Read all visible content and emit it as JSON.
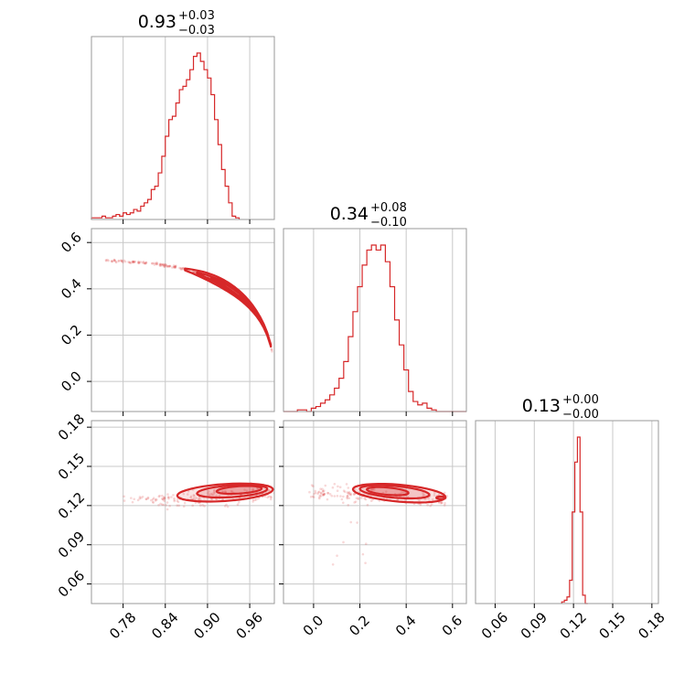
{
  "colors": {
    "accent": "#d62728",
    "grid": "#c8c8c8",
    "frame": "#9a9a9a"
  },
  "chart_data": {
    "type": "corner",
    "grid": true,
    "parameters": [
      {
        "index": 0,
        "range": [
          0.735,
          0.995
        ],
        "ticks": [
          0.78,
          0.84,
          0.9,
          0.96
        ],
        "tick_labels": [
          "0.78",
          "0.84",
          "0.90",
          "0.96"
        ],
        "title": {
          "median": "0.93",
          "plus": "+0.03",
          "minus": "−0.03"
        },
        "histogram": {
          "bin_start": 0.735,
          "bin_width": 0.005,
          "counts": [
            0.01,
            0.01,
            0.01,
            0.02,
            0.01,
            0.01,
            0.02,
            0.03,
            0.02,
            0.04,
            0.03,
            0.04,
            0.06,
            0.05,
            0.08,
            0.1,
            0.12,
            0.18,
            0.2,
            0.28,
            0.38,
            0.5,
            0.6,
            0.62,
            0.7,
            0.78,
            0.8,
            0.84,
            0.9,
            0.98,
            1.0,
            0.95,
            0.9,
            0.85,
            0.75,
            0.6,
            0.45,
            0.3,
            0.2,
            0.1,
            0.02,
            0.01
          ]
        }
      },
      {
        "index": 1,
        "range": [
          -0.13,
          0.66
        ],
        "ticks": [
          0.0,
          0.2,
          0.4,
          0.6
        ],
        "tick_labels": [
          "0.0",
          "0.2",
          "0.4",
          "0.6"
        ],
        "title": {
          "median": "0.34",
          "plus": "+0.08",
          "minus": "−0.10"
        },
        "histogram": {
          "bin_start": -0.13,
          "bin_width": 0.02,
          "counts": [
            0.0,
            0.0,
            0.0,
            0.01,
            0.01,
            0.0,
            0.02,
            0.03,
            0.05,
            0.07,
            0.1,
            0.14,
            0.2,
            0.3,
            0.45,
            0.6,
            0.75,
            0.88,
            0.97,
            1.0,
            0.97,
            1.0,
            0.9,
            0.75,
            0.55,
            0.4,
            0.25,
            0.12,
            0.06,
            0.04,
            0.05,
            0.02,
            0.01,
            0.0,
            0.0,
            0.0,
            0.0,
            0.0,
            0.0,
            0.0
          ]
        }
      },
      {
        "index": 2,
        "range": [
          0.045,
          0.185
        ],
        "ticks": [
          0.06,
          0.09,
          0.12,
          0.15,
          0.18
        ],
        "tick_labels": [
          "0.06",
          "0.09",
          "0.12",
          "0.15",
          "0.18"
        ],
        "title": {
          "median": "0.13",
          "plus": "+0.00",
          "minus": "−0.00"
        },
        "histogram": {
          "bin_start": 0.111,
          "bin_width": 0.002,
          "counts": [
            0.01,
            0.02,
            0.04,
            0.14,
            0.55,
            0.85,
            1.0,
            0.55,
            0.05,
            0.0
          ]
        }
      }
    ]
  }
}
